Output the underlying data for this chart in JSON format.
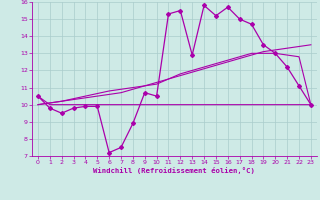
{
  "xlabel": "Windchill (Refroidissement éolien,°C)",
  "background_color": "#ceeae6",
  "grid_color": "#aacccc",
  "line_color": "#aa00aa",
  "x": [
    0,
    1,
    2,
    3,
    4,
    5,
    6,
    7,
    8,
    9,
    10,
    11,
    12,
    13,
    14,
    15,
    16,
    17,
    18,
    19,
    20,
    21,
    22,
    23
  ],
  "y_main": [
    10.5,
    9.8,
    9.5,
    9.8,
    9.9,
    9.9,
    7.2,
    7.5,
    8.9,
    10.7,
    10.5,
    15.3,
    15.5,
    12.9,
    15.8,
    15.2,
    15.7,
    15.0,
    14.7,
    13.5,
    13.0,
    12.2,
    11.1,
    10.0
  ],
  "y_trend1": [
    10.0,
    10.1,
    10.2,
    10.3,
    10.4,
    10.5,
    10.6,
    10.7,
    10.9,
    11.1,
    11.3,
    11.5,
    11.7,
    11.9,
    12.1,
    12.3,
    12.5,
    12.7,
    12.9,
    13.1,
    13.2,
    13.3,
    13.4,
    13.5
  ],
  "y_trend2": [
    10.0,
    10.1,
    10.2,
    10.35,
    10.5,
    10.65,
    10.8,
    10.9,
    11.0,
    11.1,
    11.2,
    11.5,
    11.8,
    12.0,
    12.2,
    12.4,
    12.6,
    12.8,
    13.0,
    13.0,
    13.0,
    12.9,
    12.8,
    10.0
  ],
  "y_flat": [
    10.5,
    10.0,
    10.0,
    10.0,
    10.0,
    10.0,
    10.0,
    10.0,
    10.0,
    10.0,
    10.0,
    10.0,
    10.0,
    10.0,
    10.0,
    10.0,
    10.0,
    10.0,
    10.0,
    10.0,
    10.0,
    10.0,
    10.0,
    10.0
  ],
  "ylim": [
    7,
    16
  ],
  "xlim": [
    -0.5,
    23.5
  ],
  "yticks": [
    7,
    8,
    9,
    10,
    11,
    12,
    13,
    14,
    15,
    16
  ],
  "xticks": [
    0,
    1,
    2,
    3,
    4,
    5,
    6,
    7,
    8,
    9,
    10,
    11,
    12,
    13,
    14,
    15,
    16,
    17,
    18,
    19,
    20,
    21,
    22,
    23
  ]
}
